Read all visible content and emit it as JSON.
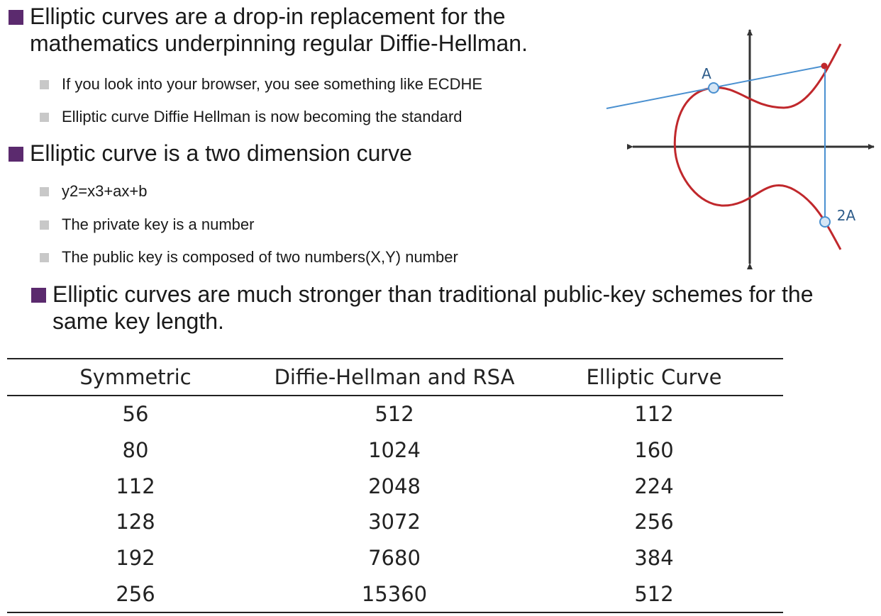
{
  "bullets": {
    "b1": "Elliptic curves are a drop-in replacement for the mathematics underpinning regular Diffie-Hellman.",
    "b1_subs": [
      "If you look into your browser, you see something like ECDHE",
      "Elliptic curve Diffie Hellman is now becoming the standard"
    ],
    "b2": "Elliptic curve is a two dimension curve",
    "b2_subs": [
      "y2=x3+ax+b",
      "The private key is a  number",
      "The public key is composed of two numbers(X,Y) number"
    ],
    "b3": "Elliptic curves are much stronger than traditional public-key schemes for the same key length."
  },
  "diagram": {
    "label_a": "A",
    "label_2a": "2A",
    "colors": {
      "curve": "#c0282c",
      "line": "#4a90d0",
      "axis": "#333333",
      "point_fill": "#d6e6f5"
    }
  },
  "table": {
    "headers": [
      "Symmetric",
      "Diffie-Hellman and RSA",
      "Elliptic Curve"
    ],
    "rows": [
      [
        "56",
        "512",
        "112"
      ],
      [
        "80",
        "1024",
        "160"
      ],
      [
        "112",
        "2048",
        "224"
      ],
      [
        "128",
        "3072",
        "256"
      ],
      [
        "192",
        "7680",
        "384"
      ],
      [
        "256",
        "15360",
        "512"
      ]
    ]
  }
}
